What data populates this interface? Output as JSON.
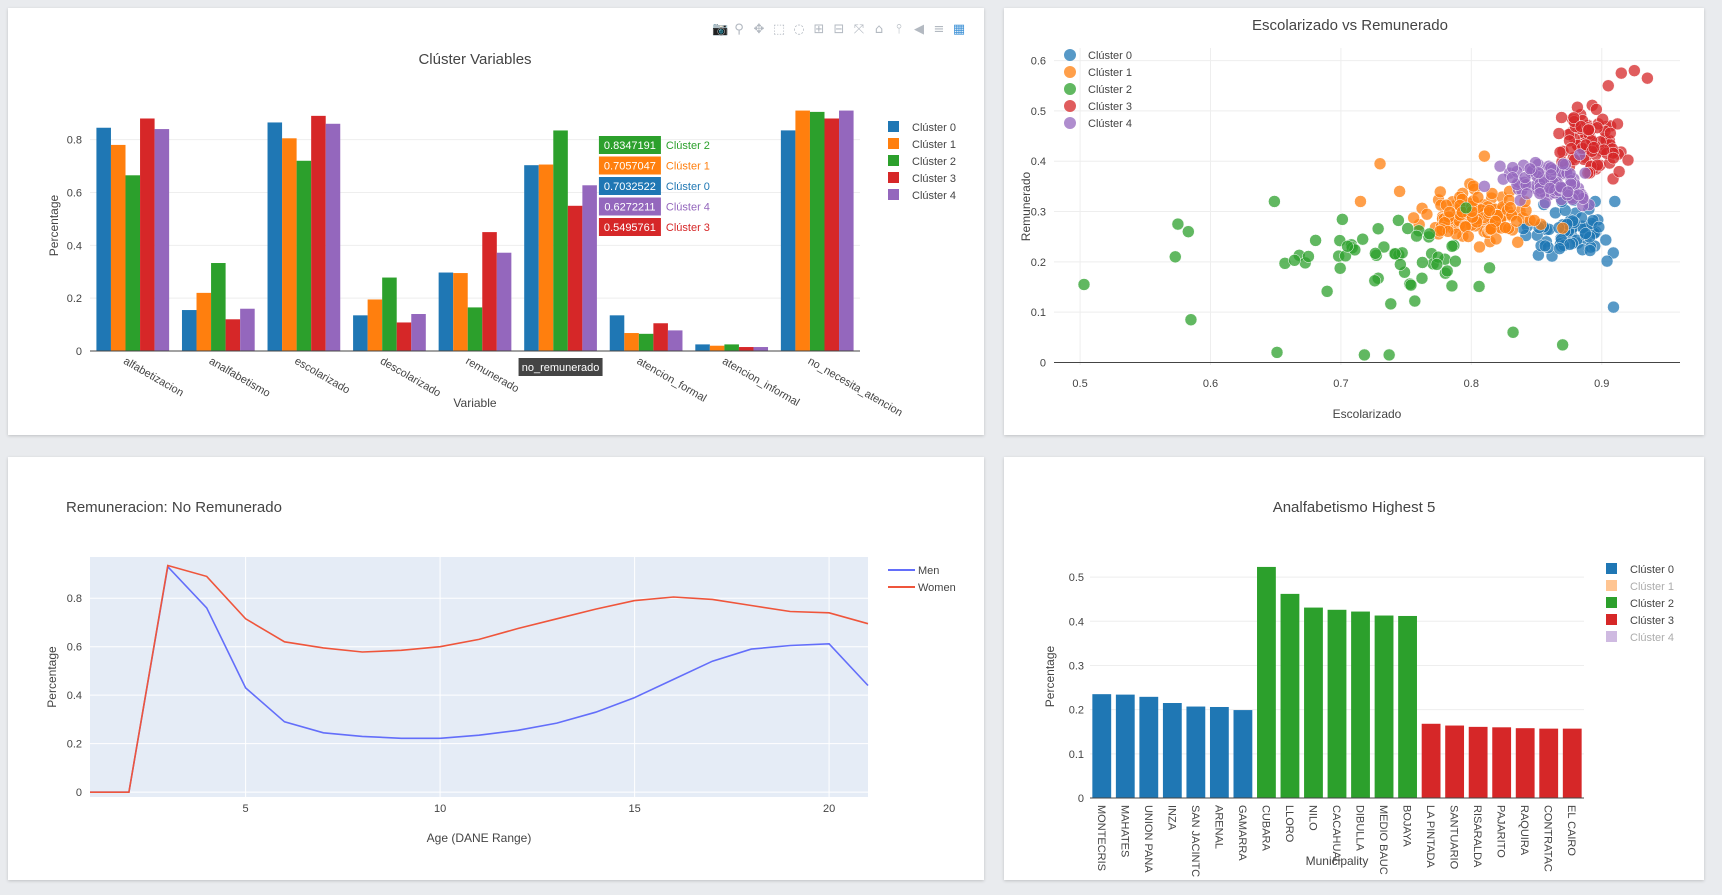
{
  "modebar": {
    "icons": [
      "camera-icon",
      "zoom-icon",
      "pan-icon",
      "box-select-icon",
      "lasso-icon",
      "zoom-in-icon",
      "zoom-out-icon",
      "autoscale-icon",
      "reset-axes-icon",
      "spike-lines-icon",
      "hover-closest-icon",
      "hover-compare-icon",
      "plotly-logo-icon"
    ],
    "glyphs": [
      "📷",
      "⚲",
      "✥",
      "⬚",
      "◌",
      "⊞",
      "⊟",
      "⤧",
      "⌂",
      "⫯",
      "◀",
      "≡",
      "▦"
    ]
  },
  "chart_data": [
    {
      "id": "cluster-variables",
      "type": "bar",
      "title": "Clúster Variables",
      "xlabel": "Variable",
      "ylabel": "Percentage",
      "ylim": [
        0,
        0.95
      ],
      "yticks": [
        0,
        0.2,
        0.4,
        0.6,
        0.8
      ],
      "categories": [
        "alfabetizacion",
        "analfabetismo",
        "escolarizado",
        "descolarizado",
        "remunerado",
        "no_remunerado",
        "atencion_formal",
        "atencion_informal",
        "no_necesita_atencion"
      ],
      "series": [
        {
          "name": "Clúster 0",
          "color": "#1f77b4",
          "values": [
            0.845,
            0.155,
            0.865,
            0.135,
            0.297,
            0.7032522,
            0.135,
            0.025,
            0.835
          ]
        },
        {
          "name": "Clúster 1",
          "color": "#ff7f0e",
          "values": [
            0.78,
            0.22,
            0.805,
            0.195,
            0.295,
            0.7057047,
            0.068,
            0.02,
            0.91
          ]
        },
        {
          "name": "Clúster 2",
          "color": "#2ca02c",
          "values": [
            0.665,
            0.333,
            0.72,
            0.278,
            0.165,
            0.8347191,
            0.065,
            0.025,
            0.905
          ]
        },
        {
          "name": "Clúster 3",
          "color": "#d62728",
          "values": [
            0.88,
            0.12,
            0.89,
            0.108,
            0.45,
            0.5495761,
            0.105,
            0.015,
            0.88
          ]
        },
        {
          "name": "Clúster 4",
          "color": "#9467bd",
          "values": [
            0.84,
            0.16,
            0.86,
            0.14,
            0.372,
            0.6272211,
            0.078,
            0.015,
            0.91
          ]
        }
      ],
      "legend": "top-right",
      "hover": {
        "category": "no_remunerado",
        "axis_label": "no_remunerado",
        "order": [
          2,
          1,
          0,
          4,
          3
        ],
        "labels": [
          "0.8347191",
          "0.7057047",
          "0.7032522",
          "0.6272211",
          "0.5495761"
        ]
      },
      "tick_text_visible": [
        "alfabetizacion",
        "analfabetismo",
        "escolarizado",
        "descolarizado",
        "remunerado",
        "",
        "atencion_formal",
        "atencion_informal",
        "no_necesita_atencion"
      ]
    },
    {
      "id": "escolarizado-vs-remunerado",
      "type": "scatter",
      "title": "Escolarizado vs Remunerado",
      "xlabel": "Escolarizado",
      "ylabel": "Remunerado",
      "xlim": [
        0.48,
        0.96
      ],
      "ylim": [
        -0.005,
        0.625
      ],
      "xticks": [
        0.5,
        0.6,
        0.7,
        0.8,
        0.9
      ],
      "yticks": [
        0,
        0.1,
        0.2,
        0.3,
        0.4,
        0.5,
        0.6
      ],
      "legend": "top-left",
      "series": [
        {
          "name": "Clúster 0",
          "color": "#1f77b4",
          "center": [
            0.875,
            0.26
          ],
          "spread": [
            0.028,
            0.042
          ],
          "count": 70,
          "extra": [
            [
              0.909,
              0.11
            ],
            [
              0.91,
              0.32
            ],
            [
              0.895,
              0.32
            ]
          ]
        },
        {
          "name": "Clúster 1",
          "color": "#ff7f0e",
          "center": [
            0.805,
            0.29
          ],
          "spread": [
            0.04,
            0.04
          ],
          "count": 120,
          "extra": [
            [
              0.73,
              0.395
            ],
            [
              0.715,
              0.32
            ],
            [
              0.745,
              0.34
            ],
            [
              0.81,
              0.41
            ]
          ]
        },
        {
          "name": "Clúster 2",
          "color": "#2ca02c",
          "center": [
            0.73,
            0.2
          ],
          "spread": [
            0.07,
            0.075
          ],
          "count": 55,
          "extra": [
            [
              0.503,
              0.155
            ],
            [
              0.575,
              0.275
            ],
            [
              0.583,
              0.26
            ],
            [
              0.573,
              0.21
            ],
            [
              0.585,
              0.085
            ],
            [
              0.649,
              0.32
            ],
            [
              0.651,
              0.02
            ],
            [
              0.718,
              0.015
            ],
            [
              0.737,
              0.015
            ],
            [
              0.832,
              0.06
            ],
            [
              0.87,
              0.035
            ]
          ]
        },
        {
          "name": "Clúster 3",
          "color": "#d62728",
          "center": [
            0.89,
            0.44
          ],
          "spread": [
            0.02,
            0.05
          ],
          "count": 95,
          "extra": [
            [
              0.925,
              0.58
            ],
            [
              0.915,
              0.575
            ],
            [
              0.935,
              0.565
            ],
            [
              0.905,
              0.55
            ]
          ]
        },
        {
          "name": "Clúster 4",
          "color": "#9467bd",
          "center": [
            0.86,
            0.36
          ],
          "spread": [
            0.028,
            0.035
          ],
          "count": 95,
          "extra": [
            [
              0.822,
              0.39
            ],
            [
              0.845,
              0.385
            ],
            [
              0.81,
              0.35
            ]
          ]
        }
      ]
    },
    {
      "id": "remuneracion-no-remunerado",
      "type": "line",
      "title": "Remuneracion: No Remunerado",
      "xlabel": "Age (DANE Range)",
      "ylabel": "Percentage",
      "xlim": [
        1,
        21
      ],
      "ylim": [
        -0.02,
        0.97
      ],
      "xticks": [
        5,
        10,
        15,
        20
      ],
      "yticks": [
        0,
        0.2,
        0.4,
        0.6,
        0.8
      ],
      "legend": "top-right",
      "x": [
        1,
        2,
        3,
        4,
        5,
        6,
        7,
        8,
        9,
        10,
        11,
        12,
        13,
        14,
        15,
        16,
        17,
        18,
        19,
        20,
        21
      ],
      "series": [
        {
          "name": "Men",
          "color": "#636efa",
          "values": [
            0,
            0,
            0.93,
            0.76,
            0.43,
            0.29,
            0.245,
            0.23,
            0.222,
            0.222,
            0.235,
            0.255,
            0.285,
            0.33,
            0.39,
            0.465,
            0.54,
            0.59,
            0.605,
            0.612,
            0.44
          ]
        },
        {
          "name": "Women",
          "color": "#ef553b",
          "values": [
            0,
            0,
            0.935,
            0.89,
            0.715,
            0.62,
            0.595,
            0.578,
            0.585,
            0.6,
            0.63,
            0.675,
            0.715,
            0.755,
            0.79,
            0.805,
            0.795,
            0.77,
            0.745,
            0.74,
            0.695
          ]
        }
      ]
    },
    {
      "id": "analfabetismo-highest-5",
      "type": "bar",
      "title": "Analfabetismo Highest 5",
      "xlabel": "Municipality",
      "ylabel": "Percentage",
      "ylim": [
        0,
        0.55
      ],
      "yticks": [
        0,
        0.1,
        0.2,
        0.3,
        0.4,
        0.5
      ],
      "categories": [
        "MONTECRIS",
        "MAHATES",
        "UNION PANA",
        "INZA",
        "SAN JACINTC",
        "ARENAL",
        "GAMARRA",
        "CUBARA",
        "LLORO",
        "NILO",
        "CACAHUAL",
        "DIBULLA",
        "MEDIO BAUC",
        "BOJAYA",
        "LA PINTADA",
        "SANTUARIO",
        "RISARALDA",
        "PAJARITO",
        "RAQUIRA",
        "CONTRATAC",
        "EL CAIRO"
      ],
      "values": [
        0.235,
        0.234,
        0.229,
        0.215,
        0.207,
        0.206,
        0.199,
        0.523,
        0.462,
        0.431,
        0.426,
        0.422,
        0.413,
        0.412,
        0.168,
        0.164,
        0.161,
        0.16,
        0.158,
        0.157,
        0.157
      ],
      "cluster": [
        0,
        0,
        0,
        0,
        0,
        0,
        0,
        2,
        2,
        2,
        2,
        2,
        2,
        2,
        3,
        3,
        3,
        3,
        3,
        3,
        3
      ],
      "legend": "top-right",
      "legend_entries": [
        {
          "name": "Clúster 0",
          "color": "#1f77b4",
          "faded": false
        },
        {
          "name": "Clúster 1",
          "color": "#ff7f0e",
          "faded": true
        },
        {
          "name": "Clúster 2",
          "color": "#2ca02c",
          "faded": false
        },
        {
          "name": "Clúster 3",
          "color": "#d62728",
          "faded": false
        },
        {
          "name": "Clúster 4",
          "color": "#9467bd",
          "faded": true
        }
      ]
    }
  ]
}
